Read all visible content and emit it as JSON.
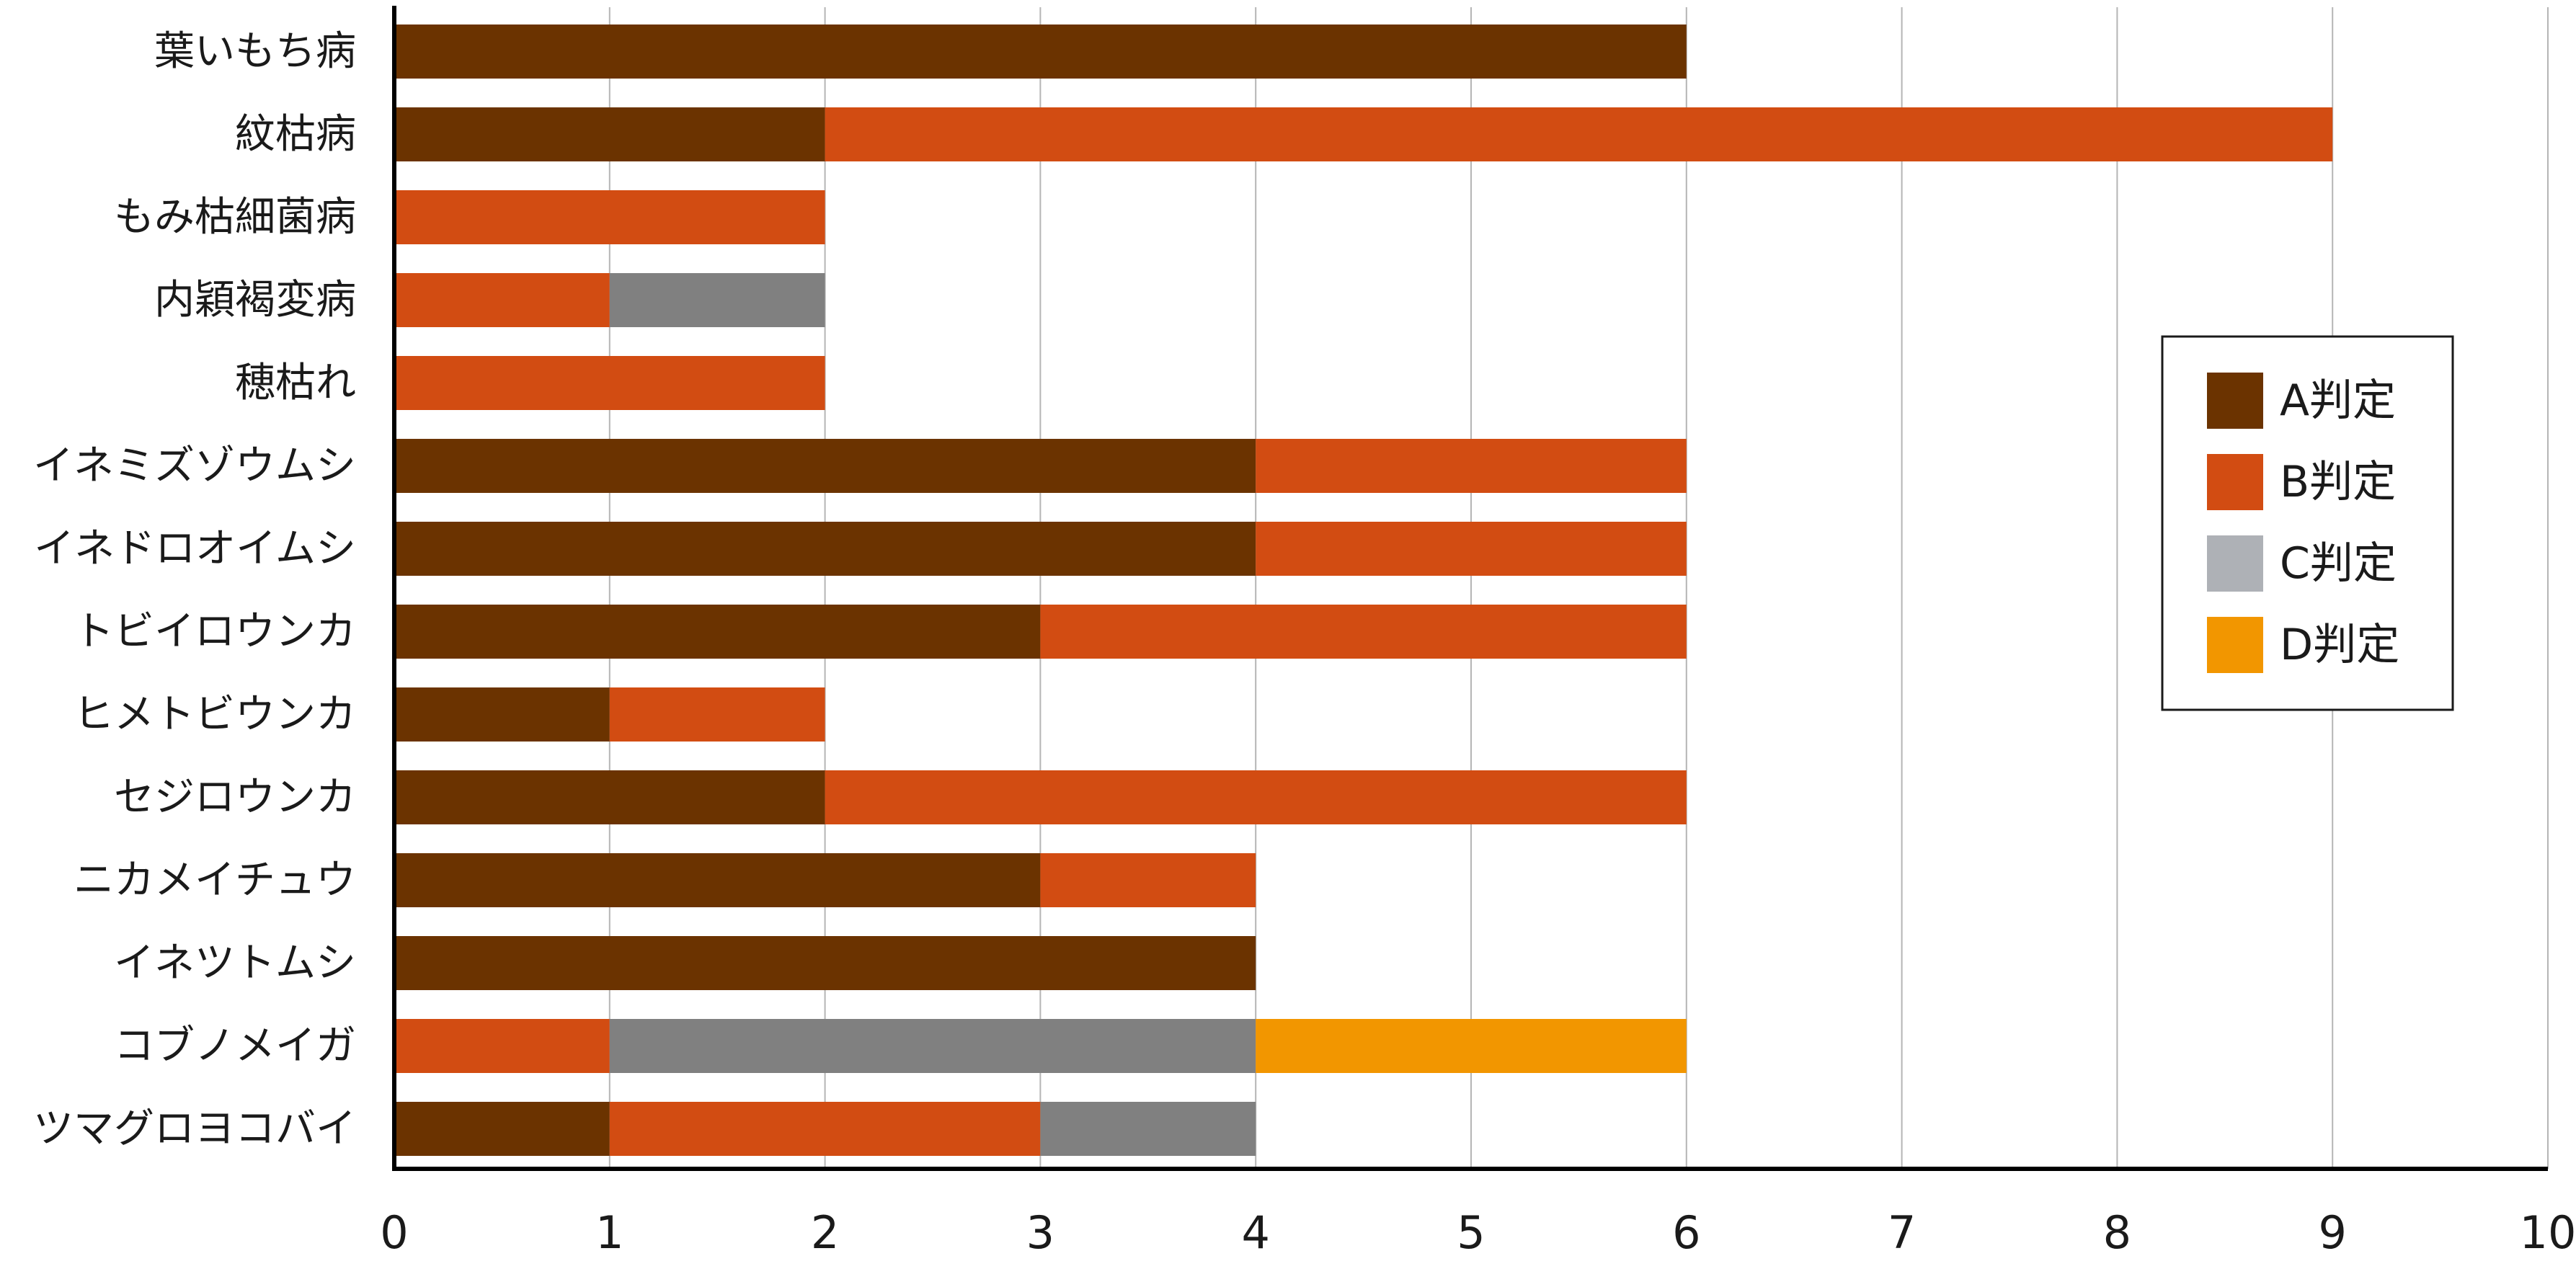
{
  "chart_data": {
    "type": "bar",
    "orientation": "horizontal",
    "stacked": true,
    "categories": [
      "葉いもち病",
      "紋枯病",
      "もみ枯細菌病",
      "内穎褐変病",
      "穂枯れ",
      "イネミズゾウムシ",
      "イネドロオイムシ",
      "トビイロウンカ",
      "ヒメトビウンカ",
      "セジロウンカ",
      "ニカメイチュウ",
      "イネツトムシ",
      "コブノメイガ",
      "ツマグロヨコバイ"
    ],
    "series": [
      {
        "name": "A判定",
        "color": "#6B3300",
        "values": [
          6,
          2,
          0,
          0,
          0,
          4,
          4,
          3,
          1,
          2,
          3,
          4,
          0,
          1
        ]
      },
      {
        "name": "B判定",
        "color": "#D24C12",
        "values": [
          0,
          7,
          2,
          1,
          2,
          2,
          2,
          3,
          1,
          4,
          1,
          0,
          1,
          2
        ]
      },
      {
        "name": "C判定",
        "color": "#808080",
        "legend_color": "#AEB1B6",
        "values": [
          0,
          0,
          0,
          1,
          0,
          0,
          0,
          0,
          0,
          0,
          0,
          0,
          3,
          1
        ]
      },
      {
        "name": "D判定",
        "color": "#F29600",
        "values": [
          0,
          0,
          0,
          0,
          0,
          0,
          0,
          0,
          0,
          0,
          0,
          0,
          2,
          0
        ]
      }
    ],
    "xlim": [
      0,
      10
    ],
    "xticks": [
      0,
      1,
      2,
      3,
      4,
      5,
      6,
      7,
      8,
      9,
      10
    ],
    "grid": "vertical",
    "legend_position": "right",
    "title": "",
    "xlabel": "",
    "ylabel": ""
  }
}
